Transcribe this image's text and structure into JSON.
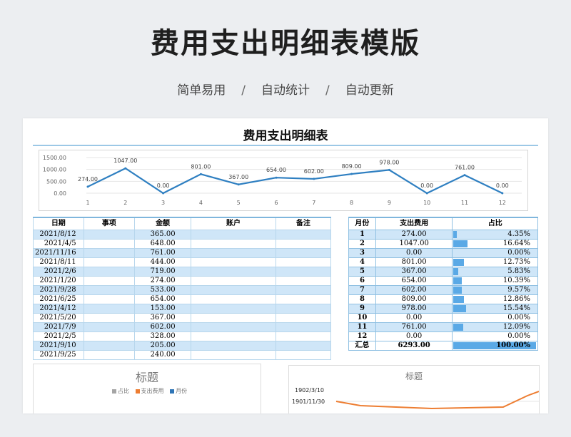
{
  "header": {
    "title": "费用支出明细表模版",
    "features": [
      "简单易用",
      "自动统计",
      "自动更新"
    ],
    "separator": "/"
  },
  "sheet": {
    "title": "费用支出明细表"
  },
  "chart_data": [
    {
      "type": "line",
      "x": [
        1,
        2,
        3,
        4,
        5,
        6,
        7,
        8,
        9,
        10,
        11,
        12
      ],
      "values": [
        274.0,
        1047.0,
        0.0,
        801.0,
        367.0,
        654.0,
        602.0,
        809.0,
        978.0,
        0.0,
        761.0,
        0.0
      ],
      "data_labels": [
        "274.00",
        "1047.00",
        "0.00",
        "801.00",
        "367.00",
        "654.00",
        "602.00",
        "809.00",
        "978.00",
        "0.00",
        "761.00",
        "0.00"
      ],
      "y_ticks": [
        "0.00",
        "500.00",
        "1000.00",
        "1500.00"
      ],
      "ylim": [
        0,
        1500
      ],
      "color": "#2e7fc1"
    },
    {
      "type": "bar",
      "title": "标题",
      "legend": [
        "占比",
        "支出费用",
        "月份"
      ],
      "legend_colors": [
        "#a5a5a5",
        "#ed7d31",
        "#4472c4"
      ]
    },
    {
      "type": "line",
      "title": "标题",
      "y_ticks": [
        "1902/3/10",
        "1901/11/30"
      ],
      "color": "#ed7d31"
    }
  ],
  "detail": {
    "headers": [
      "日期",
      "事项",
      "金额",
      "账户",
      "备注"
    ],
    "rows": [
      {
        "date": "2021/8/12",
        "amount": "365.00"
      },
      {
        "date": "2021/4/5",
        "amount": "648.00"
      },
      {
        "date": "2021/11/16",
        "amount": "761.00"
      },
      {
        "date": "2021/8/11",
        "amount": "444.00"
      },
      {
        "date": "2021/2/6",
        "amount": "719.00"
      },
      {
        "date": "2021/1/20",
        "amount": "274.00"
      },
      {
        "date": "2021/9/28",
        "amount": "533.00"
      },
      {
        "date": "2021/6/25",
        "amount": "654.00"
      },
      {
        "date": "2021/4/12",
        "amount": "153.00"
      },
      {
        "date": "2021/5/20",
        "amount": "367.00"
      },
      {
        "date": "2021/7/9",
        "amount": "602.00"
      },
      {
        "date": "2021/2/5",
        "amount": "328.00"
      },
      {
        "date": "2021/9/10",
        "amount": "205.00"
      },
      {
        "date": "2021/9/25",
        "amount": "240.00"
      }
    ]
  },
  "summary": {
    "headers": [
      "月份",
      "支出费用",
      "占比"
    ],
    "rows": [
      {
        "month": "1",
        "amount": "274.00",
        "pct": "4.35%",
        "ratio": 0.0435
      },
      {
        "month": "2",
        "amount": "1047.00",
        "pct": "16.64%",
        "ratio": 0.1664
      },
      {
        "month": "3",
        "amount": "0.00",
        "pct": "0.00%",
        "ratio": 0
      },
      {
        "month": "4",
        "amount": "801.00",
        "pct": "12.73%",
        "ratio": 0.1273
      },
      {
        "month": "5",
        "amount": "367.00",
        "pct": "5.83%",
        "ratio": 0.0583
      },
      {
        "month": "6",
        "amount": "654.00",
        "pct": "10.39%",
        "ratio": 0.1039
      },
      {
        "month": "7",
        "amount": "602.00",
        "pct": "9.57%",
        "ratio": 0.0957
      },
      {
        "month": "8",
        "amount": "809.00",
        "pct": "12.86%",
        "ratio": 0.1286
      },
      {
        "month": "9",
        "amount": "978.00",
        "pct": "15.54%",
        "ratio": 0.1554
      },
      {
        "month": "10",
        "amount": "0.00",
        "pct": "0.00%",
        "ratio": 0
      },
      {
        "month": "11",
        "amount": "761.00",
        "pct": "12.09%",
        "ratio": 0.1209
      },
      {
        "month": "12",
        "amount": "0.00",
        "pct": "0.00%",
        "ratio": 0
      }
    ],
    "total": {
      "label": "汇总",
      "amount": "6293.00",
      "pct": "100.00%",
      "ratio": 1
    }
  }
}
